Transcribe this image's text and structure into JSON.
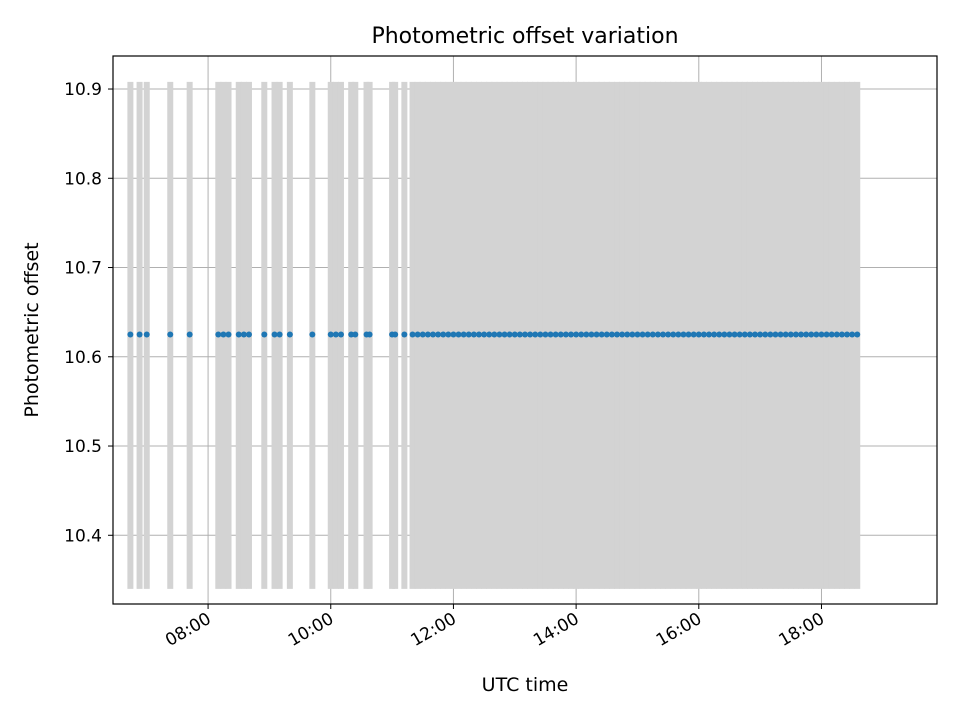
{
  "chart_data": {
    "type": "scatter",
    "title": "Photometric offset variation",
    "xlabel": "UTC time",
    "ylabel": "Photometric offset",
    "x_axis_kind": "time",
    "xlim": [
      "06:27",
      "19:53"
    ],
    "ylim": [
      10.323,
      10.937
    ],
    "xticks": [
      "08:00",
      "10:00",
      "12:00",
      "14:00",
      "16:00",
      "18:00"
    ],
    "yticks": [
      10.4,
      10.5,
      10.6,
      10.7,
      10.8,
      10.9
    ],
    "grid": true,
    "colors": {
      "points": "#1f77b4",
      "bars": "#d3d3d3",
      "grid": "#b0b0b0"
    },
    "series": [
      {
        "value": 10.625,
        "error_low": 10.34,
        "error_high": 10.908,
        "x": [
          "06:44",
          "06:53",
          "07:00",
          "07:23",
          "07:42",
          "08:10",
          "08:15",
          "08:20",
          "08:30",
          "08:35",
          "08:40",
          "08:55",
          "09:05",
          "09:10",
          "09:20",
          "09:42",
          "10:00",
          "10:05",
          "10:10",
          "10:20",
          "10:24",
          "10:35",
          "10:38",
          "11:00",
          "11:03",
          "11:12",
          "11:20",
          "11:25",
          "11:30",
          "11:35",
          "11:40",
          "11:45",
          "11:50",
          "11:55",
          "12:00",
          "12:05",
          "12:10",
          "12:15",
          "12:20",
          "12:25",
          "12:30",
          "12:35",
          "12:40",
          "12:45",
          "12:50",
          "12:55",
          "13:00",
          "13:05",
          "13:10",
          "13:15",
          "13:20",
          "13:25",
          "13:30",
          "13:35",
          "13:40",
          "13:45",
          "13:50",
          "13:55",
          "14:00",
          "14:05",
          "14:10",
          "14:15",
          "14:20",
          "14:25",
          "14:30",
          "14:35",
          "14:40",
          "14:45",
          "14:50",
          "14:55",
          "15:00",
          "15:05",
          "15:10",
          "15:15",
          "15:20",
          "15:25",
          "15:30",
          "15:35",
          "15:40",
          "15:45",
          "15:50",
          "15:55",
          "16:00",
          "16:05",
          "16:10",
          "16:15",
          "16:20",
          "16:25",
          "16:30",
          "16:35",
          "16:40",
          "16:45",
          "16:50",
          "16:55",
          "17:00",
          "17:05",
          "17:10",
          "17:15",
          "17:20",
          "17:25",
          "17:30",
          "17:35",
          "17:40",
          "17:45",
          "17:50",
          "17:55",
          "18:00",
          "18:05",
          "18:10",
          "18:15",
          "18:20",
          "18:25",
          "18:30",
          "18:35"
        ]
      }
    ]
  }
}
